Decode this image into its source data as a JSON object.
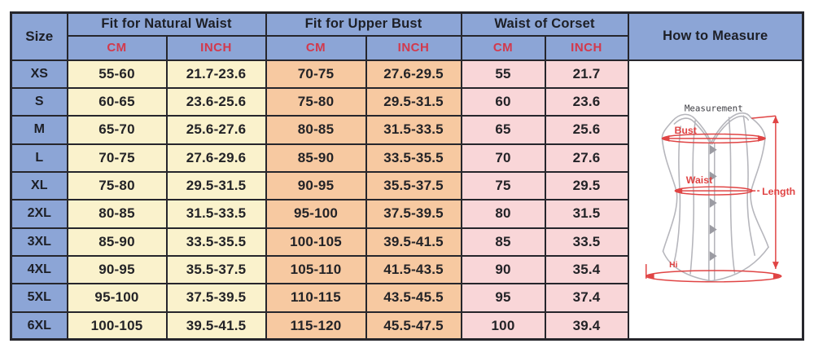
{
  "table": {
    "header": {
      "size": "Size",
      "groups": [
        {
          "label": "Fit for Natural Waist"
        },
        {
          "label": "Fit for Upper Bust"
        },
        {
          "label": "Waist of Corset"
        }
      ],
      "cm": "CM",
      "inch": "INCH",
      "how_to_measure": "How to Measure"
    },
    "rows": [
      {
        "size": "XS",
        "natural_waist_cm": "55-60",
        "natural_waist_inch": "21.7-23.6",
        "upper_bust_cm": "70-75",
        "upper_bust_inch": "27.6-29.5",
        "corset_waist_cm": "55",
        "corset_waist_inch": "21.7"
      },
      {
        "size": "S",
        "natural_waist_cm": "60-65",
        "natural_waist_inch": "23.6-25.6",
        "upper_bust_cm": "75-80",
        "upper_bust_inch": "29.5-31.5",
        "corset_waist_cm": "60",
        "corset_waist_inch": "23.6"
      },
      {
        "size": "M",
        "natural_waist_cm": "65-70",
        "natural_waist_inch": "25.6-27.6",
        "upper_bust_cm": "80-85",
        "upper_bust_inch": "31.5-33.5",
        "corset_waist_cm": "65",
        "corset_waist_inch": "25.6"
      },
      {
        "size": "L",
        "natural_waist_cm": "70-75",
        "natural_waist_inch": "27.6-29.6",
        "upper_bust_cm": "85-90",
        "upper_bust_inch": "33.5-35.5",
        "corset_waist_cm": "70",
        "corset_waist_inch": "27.6"
      },
      {
        "size": "XL",
        "natural_waist_cm": "75-80",
        "natural_waist_inch": "29.5-31.5",
        "upper_bust_cm": "90-95",
        "upper_bust_inch": "35.5-37.5",
        "corset_waist_cm": "75",
        "corset_waist_inch": "29.5"
      },
      {
        "size": "2XL",
        "natural_waist_cm": "80-85",
        "natural_waist_inch": "31.5-33.5",
        "upper_bust_cm": "95-100",
        "upper_bust_inch": "37.5-39.5",
        "corset_waist_cm": "80",
        "corset_waist_inch": "31.5"
      },
      {
        "size": "3XL",
        "natural_waist_cm": "85-90",
        "natural_waist_inch": "33.5-35.5",
        "upper_bust_cm": "100-105",
        "upper_bust_inch": "39.5-41.5",
        "corset_waist_cm": "85",
        "corset_waist_inch": "33.5"
      },
      {
        "size": "4XL",
        "natural_waist_cm": "90-95",
        "natural_waist_inch": "35.5-37.5",
        "upper_bust_cm": "105-110",
        "upper_bust_inch": "41.5-43.5",
        "corset_waist_cm": "90",
        "corset_waist_inch": "35.4"
      },
      {
        "size": "5XL",
        "natural_waist_cm": "95-100",
        "natural_waist_inch": "37.5-39.5",
        "upper_bust_cm": "110-115",
        "upper_bust_inch": "43.5-45.5",
        "corset_waist_cm": "95",
        "corset_waist_inch": "37.4"
      },
      {
        "size": "6XL",
        "natural_waist_cm": "100-105",
        "natural_waist_inch": "39.5-41.5",
        "upper_bust_cm": "115-120",
        "upper_bust_inch": "45.5-47.5",
        "corset_waist_cm": "100",
        "corset_waist_inch": "39.4"
      }
    ]
  },
  "illustration": {
    "title": "Measurement",
    "labels": {
      "bust": "Bust",
      "waist": "Waist",
      "length": "Length",
      "hip": "Hi"
    }
  },
  "colors": {
    "header_blue": "#8ca5d6",
    "natural_waist_yellow": "#faf2cc",
    "upper_bust_peach": "#f7c9a1",
    "corset_waist_pink": "#f9d6d8",
    "unit_red": "#d2394c",
    "illustration_red": "#e04444",
    "border_dark": "#26262c"
  }
}
